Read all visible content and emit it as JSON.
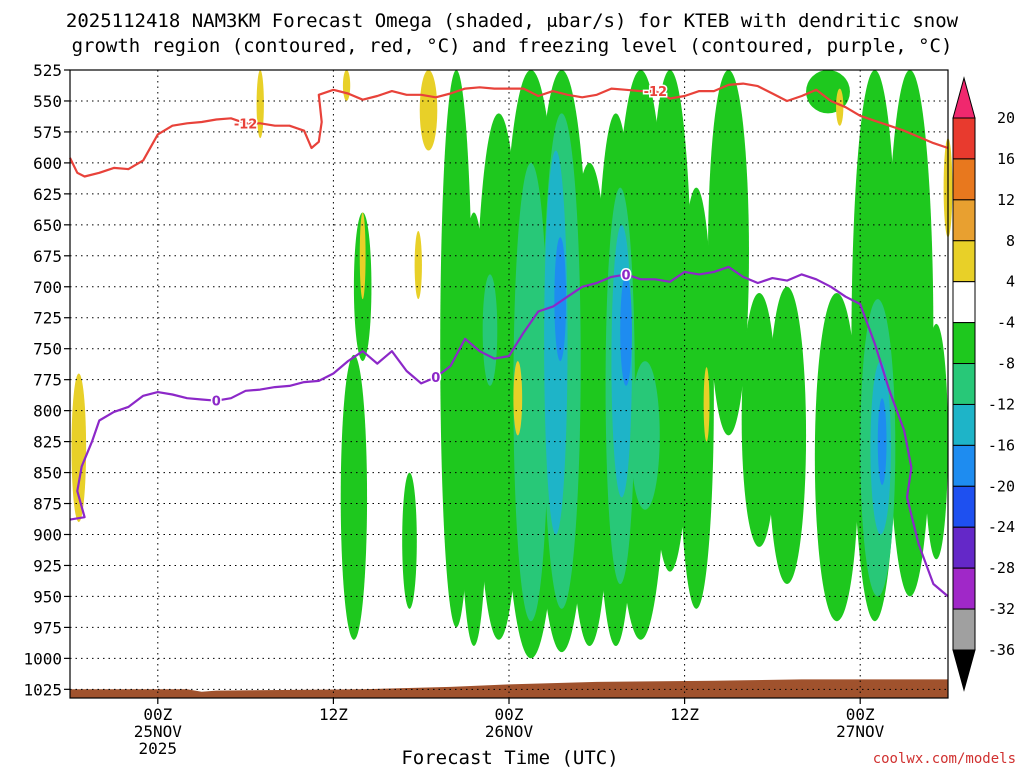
{
  "chart_data": {
    "type": "heatmap",
    "title_line1": "2025112418 NAM3KM Forecast Omega (shaded, μbar/s) for KTEB with dendritic snow",
    "title_line2": "growth region (contoured, red, °C) and freezing level (contoured, purple, °C)",
    "xlabel": "Forecast Time (UTC)",
    "y_levels_hPa": [
      "525",
      "550",
      "575",
      "600",
      "625",
      "650",
      "675",
      "700",
      "725",
      "750",
      "775",
      "800",
      "825",
      "850",
      "875",
      "900",
      "925",
      "950",
      "975",
      "1000",
      "1025"
    ],
    "x_ticks": [
      {
        "hour": 6,
        "line1": "00Z",
        "line2": "25NOV",
        "line3": "2025"
      },
      {
        "hour": 18,
        "line1": "12Z",
        "line2": "",
        "line3": ""
      },
      {
        "hour": 30,
        "line1": "00Z",
        "line2": "26NOV",
        "line3": ""
      },
      {
        "hour": 42,
        "line1": "12Z",
        "line2": "",
        "line3": ""
      },
      {
        "hour": 54,
        "line1": "00Z",
        "line2": "27NOV",
        "line3": ""
      }
    ],
    "x_range_hours": [
      0,
      60
    ],
    "y_range_hPa": [
      525,
      1032
    ],
    "colorbar": {
      "labels": [
        "20",
        "16",
        "12",
        "8",
        "4",
        "-4",
        "-8",
        "-12",
        "-16",
        "-20",
        "-24",
        "-28",
        "-32",
        "-36"
      ],
      "colors": [
        "#f0286e",
        "#e83a2e",
        "#e8781e",
        "#e8a030",
        "#e8d028",
        "#ffffff",
        "#1ec81e",
        "#28c878",
        "#1eb4c8",
        "#1e8cf0",
        "#1e50f0",
        "#6428c8",
        "#a028c8",
        "#a0a0a0"
      ]
    },
    "dgz_contour": {
      "label": "-12",
      "color": "#e8423a",
      "points_hour_hPa": [
        [
          0,
          596
        ],
        [
          0.5,
          608
        ],
        [
          1,
          611
        ],
        [
          2,
          608
        ],
        [
          3,
          604
        ],
        [
          4,
          605
        ],
        [
          5,
          598
        ],
        [
          6,
          577
        ],
        [
          7,
          570
        ],
        [
          8,
          568
        ],
        [
          9,
          567
        ],
        [
          10,
          565
        ],
        [
          11,
          564
        ],
        [
          12,
          568
        ],
        [
          13,
          568
        ],
        [
          14,
          570
        ],
        [
          15,
          570
        ],
        [
          16,
          574
        ],
        [
          16.5,
          588
        ],
        [
          17,
          583
        ],
        [
          17.2,
          567
        ],
        [
          17,
          545
        ],
        [
          18,
          541
        ],
        [
          19,
          544
        ],
        [
          20,
          549
        ],
        [
          21,
          546
        ],
        [
          22,
          542
        ],
        [
          23,
          545
        ],
        [
          24,
          545
        ],
        [
          25,
          547
        ],
        [
          26,
          544
        ],
        [
          27,
          540
        ],
        [
          28,
          539
        ],
        [
          29,
          540
        ],
        [
          30,
          540
        ],
        [
          31,
          540
        ],
        [
          32,
          546
        ],
        [
          33,
          542
        ],
        [
          34,
          545
        ],
        [
          35,
          547
        ],
        [
          36,
          545
        ],
        [
          37,
          540
        ],
        [
          38,
          541
        ],
        [
          39,
          542
        ],
        [
          40,
          542
        ],
        [
          41,
          548
        ],
        [
          42,
          546
        ],
        [
          43,
          542
        ],
        [
          44,
          542
        ],
        [
          45,
          537
        ],
        [
          46,
          536
        ],
        [
          47,
          538
        ],
        [
          48,
          544
        ],
        [
          49,
          550
        ],
        [
          50,
          546
        ],
        [
          51,
          541
        ],
        [
          52,
          550
        ],
        [
          53,
          555
        ],
        [
          54,
          562
        ],
        [
          55,
          566
        ],
        [
          56,
          570
        ],
        [
          57,
          574
        ],
        [
          58,
          579
        ],
        [
          59,
          584
        ],
        [
          60,
          588
        ]
      ]
    },
    "freezing_contour": {
      "label": "0",
      "color": "#8c28c8",
      "points_hour_hPa": [
        [
          0,
          888
        ],
        [
          1,
          886
        ],
        [
          0.5,
          865
        ],
        [
          0.8,
          845
        ],
        [
          1.5,
          825
        ],
        [
          2,
          808
        ],
        [
          3,
          801
        ],
        [
          4,
          797
        ],
        [
          5,
          788
        ],
        [
          6,
          785
        ],
        [
          7,
          787
        ],
        [
          8,
          790
        ],
        [
          9,
          791
        ],
        [
          10,
          792
        ],
        [
          11,
          790
        ],
        [
          12,
          784
        ],
        [
          13,
          783
        ],
        [
          14,
          781
        ],
        [
          15,
          780
        ],
        [
          16,
          777
        ],
        [
          17,
          776
        ],
        [
          18,
          770
        ],
        [
          19,
          760
        ],
        [
          20,
          752
        ],
        [
          21,
          762
        ],
        [
          22,
          752
        ],
        [
          23,
          768
        ],
        [
          24,
          778
        ],
        [
          25,
          773
        ],
        [
          26,
          764
        ],
        [
          27,
          742
        ],
        [
          28,
          752
        ],
        [
          29,
          758
        ],
        [
          30,
          756
        ],
        [
          31,
          737
        ],
        [
          32,
          720
        ],
        [
          33,
          716
        ],
        [
          34,
          708
        ],
        [
          35,
          700
        ],
        [
          36,
          697
        ],
        [
          37,
          692
        ],
        [
          38,
          690
        ],
        [
          39,
          694
        ],
        [
          40,
          694
        ],
        [
          41,
          696
        ],
        [
          42,
          688
        ],
        [
          43,
          690
        ],
        [
          44,
          688
        ],
        [
          45,
          684
        ],
        [
          46,
          692
        ],
        [
          47,
          697
        ],
        [
          48,
          693
        ],
        [
          49,
          695
        ],
        [
          50,
          690
        ],
        [
          51,
          694
        ],
        [
          52,
          700
        ],
        [
          53,
          708
        ],
        [
          54,
          714
        ],
        [
          55,
          746
        ],
        [
          56,
          784
        ],
        [
          57,
          816
        ],
        [
          57.5,
          846
        ],
        [
          57.2,
          870
        ],
        [
          58,
          908
        ],
        [
          59,
          940
        ],
        [
          60,
          950
        ]
      ]
    }
  },
  "watermark": "coolwx.com/models"
}
